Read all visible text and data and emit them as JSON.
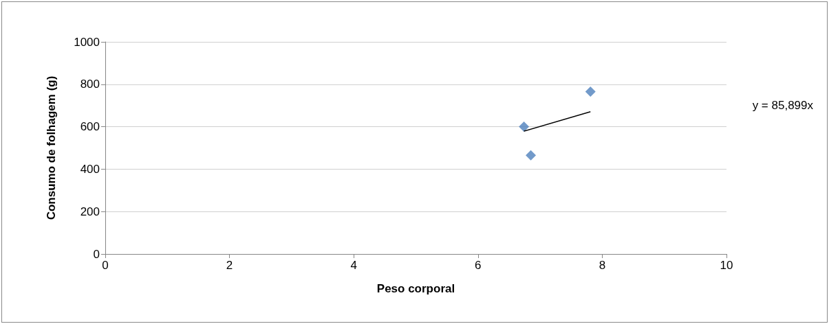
{
  "chart_data": {
    "type": "scatter",
    "xlabel": "Peso corporal",
    "ylabel": "Consumo de folhagem (g)",
    "annotations": [
      "y = 85,899x"
    ],
    "series": [
      {
        "color": "#4f81bd",
        "x": [
          6.74,
          6.85,
          7.81
        ],
        "values": [
          600,
          465,
          765
        ]
      },
      {
        "type": "line",
        "marker": "none",
        "color": "#000000",
        "x": [
          6.74,
          7.81
        ],
        "values": [
          579,
          671
        ]
      }
    ],
    "xlim": [
      0,
      10
    ],
    "xticks": [
      0,
      2,
      4,
      6,
      8,
      10
    ],
    "ylim": [
      0,
      1000
    ],
    "yticks": [
      0,
      200,
      400,
      600,
      800,
      1000
    ],
    "grid": "y",
    "marker": "diamond"
  }
}
